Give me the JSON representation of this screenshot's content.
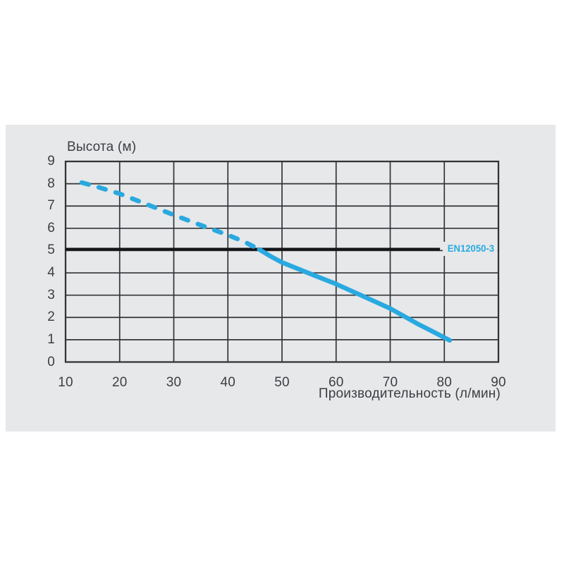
{
  "page": {
    "background": "#ffffff"
  },
  "panel": {
    "background": "#e6e8ea"
  },
  "chart_data": {
    "type": "line",
    "title": "",
    "ylabel": "Высота (м)",
    "xlabel": "Производительность (л/мин)",
    "xlim": [
      10,
      90
    ],
    "ylim": [
      0,
      9
    ],
    "x_ticks": [
      10,
      20,
      30,
      40,
      50,
      60,
      70,
      80,
      90
    ],
    "y_ticks": [
      0,
      1,
      2,
      3,
      4,
      5,
      6,
      7,
      8,
      9
    ],
    "grid": true,
    "legend": "none",
    "colors": {
      "curve": "#29a9e0",
      "grid": "#323437",
      "reference": "#141414",
      "text": "#3c3e41"
    },
    "series": [
      {
        "name": "pump-curve-dashed",
        "style": "dashed",
        "points": [
          [
            13,
            8.05
          ],
          [
            16,
            7.85
          ],
          [
            20,
            7.55
          ],
          [
            25,
            7.08
          ],
          [
            30,
            6.6
          ],
          [
            35,
            6.14
          ],
          [
            40,
            5.7
          ],
          [
            43,
            5.4
          ],
          [
            45.8,
            5.05
          ]
        ]
      },
      {
        "name": "pump-curve-solid",
        "style": "solid",
        "points": [
          [
            45.8,
            5.05
          ],
          [
            48,
            4.73
          ],
          [
            50,
            4.47
          ],
          [
            55,
            3.98
          ],
          [
            60,
            3.5
          ],
          [
            65,
            2.95
          ],
          [
            70,
            2.4
          ],
          [
            75,
            1.72
          ],
          [
            78,
            1.35
          ],
          [
            81,
            0.97
          ]
        ]
      }
    ],
    "reference_line": {
      "label": "EN12050-3",
      "y": 5,
      "x_start": 10,
      "x_end": 79.2
    }
  }
}
